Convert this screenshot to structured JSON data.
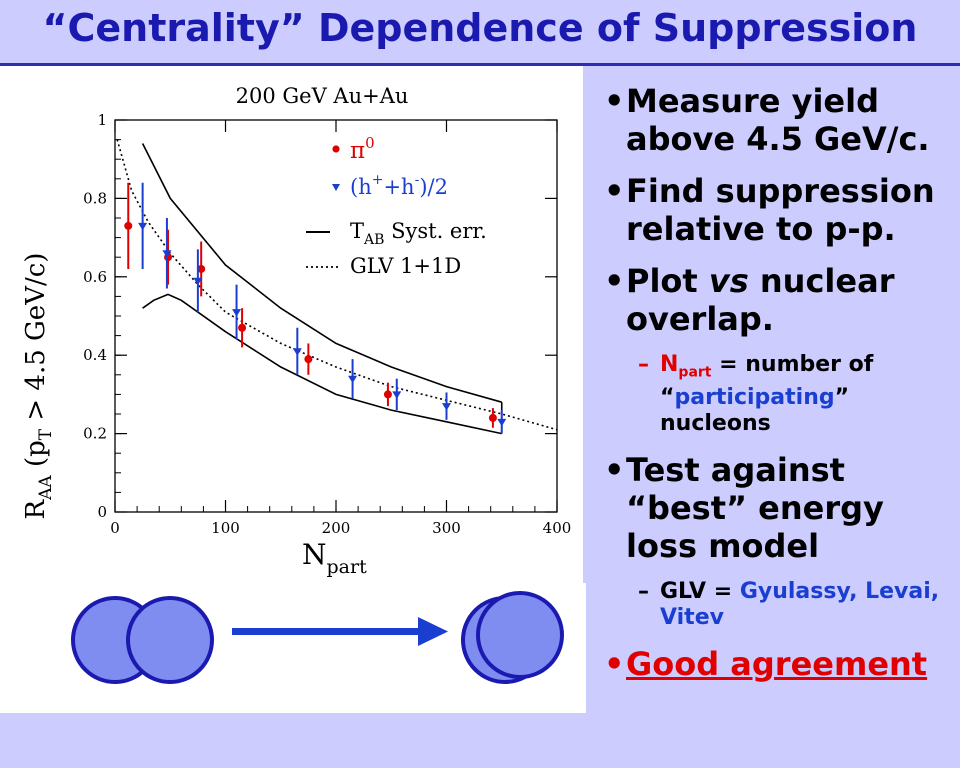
{
  "slide": {
    "title": "“Centrality” Dependence of  Suppression"
  },
  "bullets": {
    "b1_text": "Measure yield above 4.5 GeV/c.",
    "b2_text": "Find suppression relative to p-p.",
    "b3_pre": "Plot ",
    "b3_em": "vs",
    "b3_post": " nuclear overlap.",
    "b3_sub_symbol": "N",
    "b3_sub_subscript": "part",
    "b3_sub_mid": " = number of “",
    "b3_sub_highlight": "participating",
    "b3_sub_post": "” nucleons",
    "b4_text": "Test against “best” energy loss model",
    "b4_sub_pre": "GLV = ",
    "b4_sub_highlight": "Gyulassy, Levai, Vitev",
    "b5_text": "Good agreement",
    "bullet_glyph": "•",
    "dash_glyph": "–"
  },
  "colors": {
    "background": "#ccccff",
    "title": "#1a1ab0",
    "pi0": "#e00000",
    "hadrons": "#1a3fd0",
    "nucleus_fill": "#7f8cf0",
    "nucleus_stroke": "#1a1ab0",
    "arrow": "#1a3fd0"
  },
  "chart_data": {
    "type": "scatter",
    "title": "200 GeV Au+Au",
    "xlabel_main": "N",
    "xlabel_sub": "part",
    "ylabel_main": "R",
    "ylabel_sub": "AA",
    "ylabel_rest_open": " (p",
    "ylabel_rest_sub": "T",
    "ylabel_rest_close": " > 4.5 GeV/c)",
    "xlim": [
      0,
      400
    ],
    "ylim": [
      0,
      1
    ],
    "x_ticks": [
      "0",
      "100",
      "200",
      "300",
      "400"
    ],
    "y_ticks": [
      "0",
      "0.2",
      "0.4",
      "0.6",
      "0.8",
      "1"
    ],
    "series": [
      {
        "name": "π⁰",
        "legend_main": "π",
        "legend_sup": "0",
        "marker": "circle",
        "color": "#e00000",
        "x": [
          12,
          48,
          78,
          115,
          175,
          247,
          342
        ],
        "y": [
          0.73,
          0.65,
          0.62,
          0.47,
          0.39,
          0.3,
          0.24
        ],
        "err": [
          0.11,
          0.07,
          0.07,
          0.05,
          0.04,
          0.03,
          0.025
        ]
      },
      {
        "name": "(h⁺+h⁻)/2",
        "legend_main": "(h",
        "legend_sup1": "+",
        "legend_mid": "+h",
        "legend_sup2": "-",
        "legend_end": ")/2",
        "marker": "triangle-down",
        "color": "#1a3fd0",
        "x": [
          25,
          47,
          75,
          110,
          165,
          215,
          255,
          300,
          350
        ],
        "y": [
          0.73,
          0.66,
          0.59,
          0.51,
          0.41,
          0.34,
          0.3,
          0.27,
          0.23
        ],
        "err": [
          0.11,
          0.09,
          0.08,
          0.07,
          0.06,
          0.05,
          0.04,
          0.035,
          0.03
        ]
      }
    ],
    "syst_band": {
      "name": "T",
      "name_sub": "AB",
      "name_rest": " Syst. err.",
      "upper": {
        "x": [
          25,
          50,
          100,
          150,
          200,
          250,
          300,
          350
        ],
        "y": [
          0.94,
          0.8,
          0.63,
          0.52,
          0.43,
          0.37,
          0.32,
          0.28
        ]
      },
      "lower": {
        "x": [
          25,
          35,
          48,
          60,
          100,
          150,
          200,
          250,
          300,
          350
        ],
        "y": [
          0.52,
          0.54,
          0.555,
          0.54,
          0.46,
          0.37,
          0.3,
          0.26,
          0.23,
          0.2
        ]
      }
    },
    "glv_curve": {
      "name": "GLV 1+1D",
      "x": [
        2,
        15,
        30,
        50,
        75,
        100,
        150,
        200,
        250,
        300,
        350,
        400
      ],
      "y": [
        0.95,
        0.82,
        0.74,
        0.66,
        0.58,
        0.51,
        0.43,
        0.37,
        0.32,
        0.285,
        0.25,
        0.21
      ]
    }
  }
}
